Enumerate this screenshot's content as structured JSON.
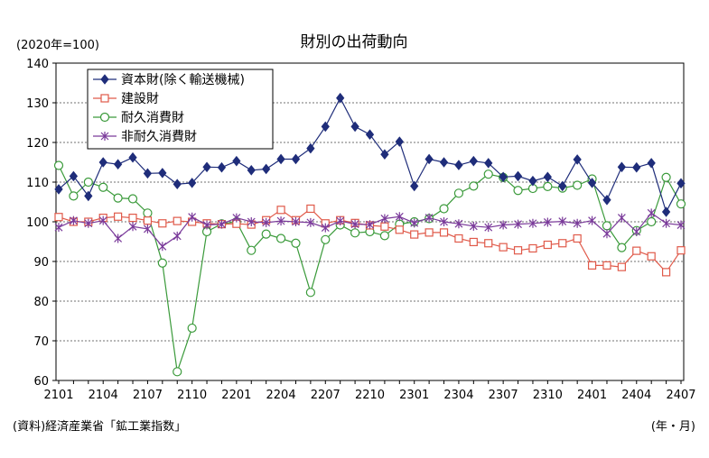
{
  "chart_data": {
    "type": "line",
    "title": "財別の出荷動向",
    "ylabel": "(2020年=100)",
    "xlabel": "(年・月)",
    "source": "(資料)経済産業省「鉱工業指数」",
    "ylim": [
      60,
      140
    ],
    "yticks": [
      60,
      70,
      80,
      90,
      100,
      110,
      120,
      130,
      140
    ],
    "grid": true,
    "legend_position": "top-left",
    "x": [
      "2101",
      "2102",
      "2103",
      "2104",
      "2105",
      "2106",
      "2107",
      "2108",
      "2109",
      "2110",
      "2111",
      "2112",
      "2201",
      "2202",
      "2203",
      "2204",
      "2205",
      "2206",
      "2207",
      "2208",
      "2209",
      "2210",
      "2211",
      "2212",
      "2301",
      "2302",
      "2303",
      "2304",
      "2305",
      "2306",
      "2307",
      "2308",
      "2309",
      "2310",
      "2311",
      "2312",
      "2401",
      "2402",
      "2403",
      "2404",
      "2405",
      "2406",
      "2407"
    ],
    "xtick_labels": [
      "2101",
      "2104",
      "2107",
      "2110",
      "2201",
      "2204",
      "2207",
      "2210",
      "2301",
      "2304",
      "2307",
      "2310",
      "2401",
      "2404",
      "2407"
    ],
    "series": [
      {
        "name": "資本財(除く輸送機械)",
        "color": "#1f2d7a",
        "marker": "diamond",
        "values": [
          108.2,
          111.5,
          106.5,
          115.0,
          114.5,
          116.2,
          112.2,
          112.3,
          109.5,
          109.8,
          113.8,
          113.7,
          115.3,
          113.0,
          113.3,
          115.8,
          115.8,
          118.5,
          124.0,
          131.2,
          124.0,
          122.0,
          117.0,
          120.2,
          109.0,
          115.8,
          115.0,
          114.3,
          115.3,
          114.8,
          111.3,
          111.5,
          110.3,
          111.3,
          109.0,
          115.7,
          109.8,
          105.5,
          113.8,
          113.7,
          114.8,
          102.5,
          109.7
        ]
      },
      {
        "name": "建設財",
        "color": "#e05a4a",
        "marker": "square",
        "values": [
          101.2,
          100.0,
          100.0,
          101.0,
          101.3,
          101.0,
          100.3,
          99.6,
          100.2,
          100.0,
          99.6,
          99.4,
          99.5,
          99.3,
          100.4,
          103.0,
          100.4,
          103.3,
          99.6,
          100.4,
          99.7,
          99.1,
          98.8,
          98.0,
          96.8,
          97.3,
          97.3,
          95.8,
          94.9,
          94.6,
          93.6,
          92.8,
          93.3,
          94.2,
          94.6,
          95.8,
          89.0,
          89.0,
          88.6,
          92.7,
          91.3,
          87.3,
          92.8
        ]
      },
      {
        "name": "耐久消費財",
        "color": "#3a9a3a",
        "marker": "circle",
        "values": [
          114.2,
          106.5,
          110.0,
          108.7,
          106.0,
          105.8,
          102.2,
          89.6,
          62.2,
          73.2,
          97.5,
          99.5,
          100.0,
          92.8,
          96.9,
          95.8,
          94.6,
          82.2,
          95.5,
          99.2,
          97.2,
          97.5,
          96.5,
          99.4,
          100.0,
          100.8,
          103.3,
          107.2,
          109.0,
          112.0,
          111.2,
          107.9,
          108.4,
          108.9,
          108.5,
          109.2,
          110.8,
          99.0,
          93.5,
          97.8,
          100.0,
          111.2,
          104.5
        ]
      },
      {
        "name": "非耐久消費財",
        "color": "#7a3a9a",
        "marker": "x",
        "values": [
          98.6,
          100.3,
          99.6,
          100.3,
          95.8,
          98.8,
          98.2,
          93.8,
          96.4,
          101.2,
          99.2,
          99.4,
          101.0,
          100.0,
          99.8,
          100.2,
          100.0,
          99.8,
          98.5,
          100.2,
          99.4,
          99.3,
          100.8,
          101.3,
          99.7,
          101.0,
          100.0,
          99.5,
          98.9,
          98.6,
          99.2,
          99.4,
          99.6,
          99.9,
          100.1,
          99.6,
          100.3,
          97.0,
          101.0,
          97.5,
          102.2,
          99.6,
          99.2
        ]
      }
    ]
  }
}
